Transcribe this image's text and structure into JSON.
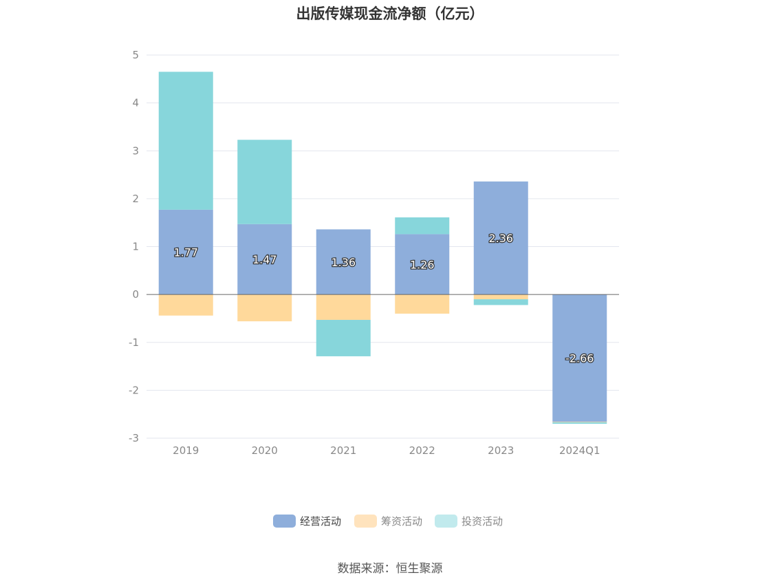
{
  "chart_data": {
    "type": "bar",
    "stacked": true,
    "title": "出版传媒现金流净额（亿元）",
    "categories": [
      "2019",
      "2020",
      "2021",
      "2022",
      "2023",
      "2024Q1"
    ],
    "series": [
      {
        "name": "经营活动",
        "color": "#8eaedb",
        "values": [
          1.77,
          1.47,
          1.36,
          1.26,
          2.36,
          -2.66
        ]
      },
      {
        "name": "筹资活动",
        "color": "#ffd99b",
        "values": [
          -0.44,
          -0.56,
          -0.53,
          -0.4,
          -0.1,
          -0.01
        ]
      },
      {
        "name": "投资活动",
        "color": "#87d6db",
        "values": [
          2.88,
          1.76,
          -0.76,
          0.35,
          -0.12,
          -0.03
        ]
      }
    ],
    "data_labels": [
      "1.77",
      "1.47",
      "1.36",
      "1.26",
      "2.36",
      "-2.66"
    ],
    "yticks": [
      "5",
      "4",
      "3",
      "2",
      "1",
      "0",
      "-1",
      "-2",
      "-3"
    ],
    "ylim": [
      -3,
      5
    ],
    "grid": true,
    "legend_position": "bottom-center",
    "legend_colors": [
      "#8eaedb",
      "#ffe3bd",
      "#c1eaed"
    ]
  },
  "source": "数据来源：恒生聚源"
}
